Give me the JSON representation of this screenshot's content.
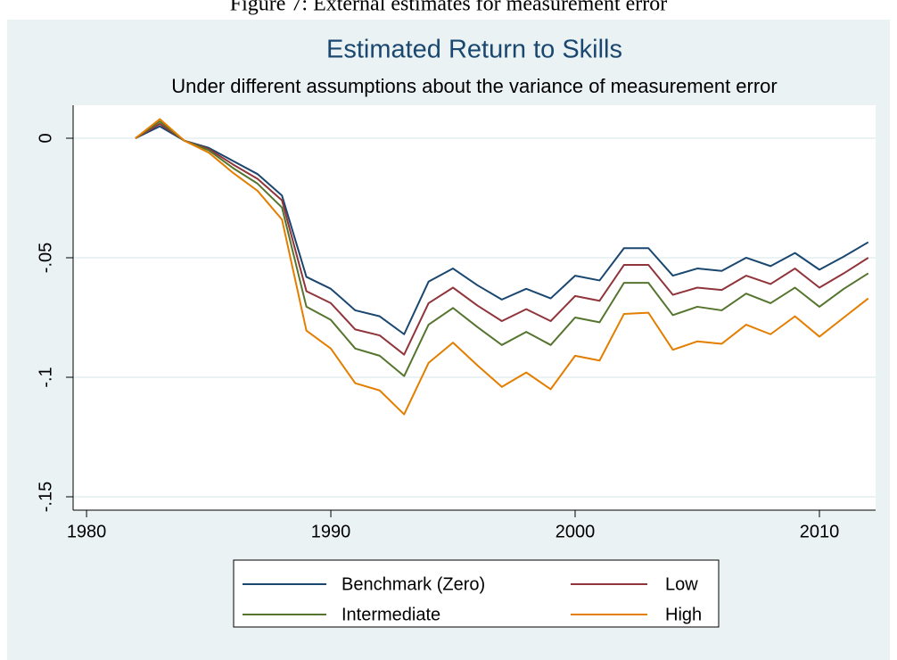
{
  "caption": "Figure 7: External estimates for measurement error",
  "chart_data": {
    "type": "line",
    "title": "Estimated Return to Skills",
    "subtitle": "Under different assumptions about the variance of measurement error",
    "x": [
      1982,
      1983,
      1984,
      1985,
      1986,
      1987,
      1988,
      1989,
      1990,
      1991,
      1992,
      1993,
      1994,
      1995,
      1996,
      1997,
      1998,
      1999,
      2000,
      2001,
      2002,
      2003,
      2004,
      2005,
      2006,
      2007,
      2008,
      2009,
      2010,
      2011,
      2012
    ],
    "series": [
      {
        "name": "Benchmark (Zero)",
        "color": "#1a476f",
        "values": [
          0,
          0.005,
          -0.001,
          -0.004,
          -0.0095,
          -0.015,
          -0.024,
          -0.058,
          -0.063,
          -0.072,
          -0.0745,
          -0.082,
          -0.06,
          -0.0545,
          -0.0615,
          -0.0675,
          -0.063,
          -0.067,
          -0.0575,
          -0.0595,
          -0.046,
          -0.046,
          -0.0575,
          -0.0545,
          -0.0555,
          -0.05,
          -0.0535,
          -0.048,
          -0.055,
          -0.0495,
          -0.0435
        ]
      },
      {
        "name": "Low",
        "color": "#90353b",
        "values": [
          0,
          0.006,
          -0.001,
          -0.0045,
          -0.011,
          -0.017,
          -0.026,
          -0.064,
          -0.069,
          -0.08,
          -0.0825,
          -0.0905,
          -0.069,
          -0.0625,
          -0.07,
          -0.0765,
          -0.0715,
          -0.0765,
          -0.066,
          -0.068,
          -0.053,
          -0.053,
          -0.0655,
          -0.0625,
          -0.0635,
          -0.0575,
          -0.061,
          -0.0545,
          -0.0625,
          -0.0565,
          -0.05
        ]
      },
      {
        "name": "Intermediate",
        "color": "#55752f",
        "values": [
          0,
          0.007,
          -0.001,
          -0.005,
          -0.0125,
          -0.019,
          -0.029,
          -0.0705,
          -0.076,
          -0.088,
          -0.091,
          -0.0995,
          -0.078,
          -0.071,
          -0.079,
          -0.0865,
          -0.081,
          -0.0865,
          -0.075,
          -0.077,
          -0.0605,
          -0.0605,
          -0.074,
          -0.0705,
          -0.072,
          -0.065,
          -0.069,
          -0.0625,
          -0.0705,
          -0.063,
          -0.0565
        ]
      },
      {
        "name": "High",
        "color": "#e37e00",
        "values": [
          0,
          0.008,
          -0.001,
          -0.006,
          -0.0145,
          -0.022,
          -0.034,
          -0.0805,
          -0.088,
          -0.1025,
          -0.1055,
          -0.1155,
          -0.094,
          -0.0855,
          -0.095,
          -0.104,
          -0.098,
          -0.105,
          -0.091,
          -0.093,
          -0.0735,
          -0.073,
          -0.0885,
          -0.085,
          -0.086,
          -0.078,
          -0.082,
          -0.0745,
          -0.083,
          -0.075,
          -0.067
        ]
      }
    ],
    "xlim": [
      1979.45,
      2012.3
    ],
    "xticks": [
      1980,
      1990,
      2000,
      2010
    ],
    "ylim": [
      -0.1556,
      0.0138
    ],
    "yticks": [
      0,
      {
        "value": -0.05,
        "label": "-.05"
      },
      {
        "value": -0.1,
        "label": "-.1"
      },
      {
        "value": -0.15,
        "label": "-.15"
      }
    ],
    "grid": true,
    "legend": "bottom"
  }
}
